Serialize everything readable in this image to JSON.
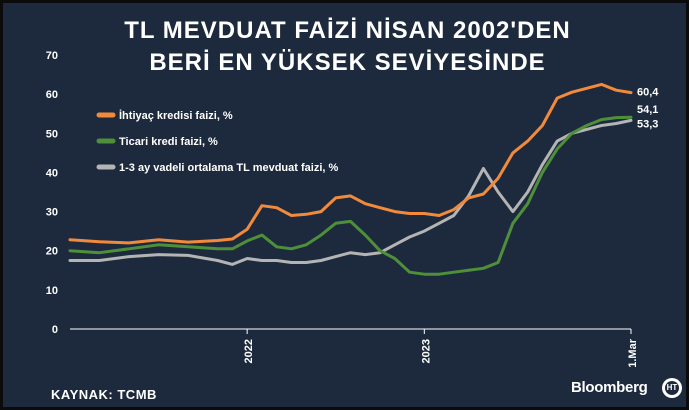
{
  "title_line1": "TL MEVDUAT FAİZİ NİSAN 2002'DEN",
  "title_line2": "BERİ EN YÜKSEK SEVİYESİNDE",
  "source": "KAYNAK: TCMB",
  "brand": "Bloomberg",
  "logo_text": "HT",
  "colors": {
    "background": "#1d2a3d",
    "orange": "#f28a3c",
    "green": "#4e8f3a",
    "gray": "#b4b4b4"
  },
  "chart_data": {
    "type": "line",
    "ylim": [
      0,
      70
    ],
    "yticks": [
      0,
      10,
      20,
      30,
      40,
      50,
      60,
      70
    ],
    "xlim": [
      "2021-01",
      "2024-03"
    ],
    "xticks": [
      {
        "value": "2022-01",
        "label": "2022"
      },
      {
        "value": "2023-01",
        "label": "2023"
      },
      {
        "value": "2024-03",
        "label": "1.Mar"
      }
    ],
    "grid": false,
    "legend_placement": "top-left",
    "series": [
      {
        "name": "İhtiyaç kredisi faizi, %",
        "color": "#f28a3c",
        "end_label": "60,4",
        "points": [
          [
            "2021-01",
            22.8
          ],
          [
            "2021-03",
            22.3
          ],
          [
            "2021-05",
            22.0
          ],
          [
            "2021-07",
            22.8
          ],
          [
            "2021-09",
            22.2
          ],
          [
            "2021-11",
            22.6
          ],
          [
            "2021-12",
            23.0
          ],
          [
            "2022-01",
            25.5
          ],
          [
            "2022-02",
            31.5
          ],
          [
            "2022-03",
            31.0
          ],
          [
            "2022-04",
            29.0
          ],
          [
            "2022-05",
            29.3
          ],
          [
            "2022-06",
            30.0
          ],
          [
            "2022-07",
            33.5
          ],
          [
            "2022-08",
            34.0
          ],
          [
            "2022-09",
            32.0
          ],
          [
            "2022-10",
            31.0
          ],
          [
            "2022-11",
            30.0
          ],
          [
            "2022-12",
            29.5
          ],
          [
            "2023-01",
            29.5
          ],
          [
            "2023-02",
            29.0
          ],
          [
            "2023-03",
            30.5
          ],
          [
            "2023-04",
            33.5
          ],
          [
            "2023-05",
            34.5
          ],
          [
            "2023-06",
            38.5
          ],
          [
            "2023-07",
            45.0
          ],
          [
            "2023-08",
            48.0
          ],
          [
            "2023-09",
            52.0
          ],
          [
            "2023-10",
            59.0
          ],
          [
            "2023-11",
            60.5
          ],
          [
            "2023-12",
            61.5
          ],
          [
            "2024-01",
            62.5
          ],
          [
            "2024-02",
            61.0
          ],
          [
            "2024-03",
            60.4
          ]
        ]
      },
      {
        "name": "Ticari kredi faizi, %",
        "color": "#4e8f3a",
        "end_label": "54,1",
        "points": [
          [
            "2021-01",
            20.0
          ],
          [
            "2021-03",
            19.5
          ],
          [
            "2021-05",
            20.5
          ],
          [
            "2021-07",
            21.5
          ],
          [
            "2021-09",
            21.0
          ],
          [
            "2021-11",
            20.5
          ],
          [
            "2021-12",
            20.5
          ],
          [
            "2022-01",
            22.5
          ],
          [
            "2022-02",
            24.0
          ],
          [
            "2022-03",
            21.0
          ],
          [
            "2022-04",
            20.5
          ],
          [
            "2022-05",
            21.5
          ],
          [
            "2022-06",
            24.0
          ],
          [
            "2022-07",
            27.0
          ],
          [
            "2022-08",
            27.5
          ],
          [
            "2022-09",
            24.0
          ],
          [
            "2022-10",
            20.0
          ],
          [
            "2022-11",
            18.0
          ],
          [
            "2022-12",
            14.5
          ],
          [
            "2023-01",
            14.0
          ],
          [
            "2023-02",
            14.0
          ],
          [
            "2023-03",
            14.5
          ],
          [
            "2023-04",
            15.0
          ],
          [
            "2023-05",
            15.5
          ],
          [
            "2023-06",
            17.0
          ],
          [
            "2023-07",
            27.0
          ],
          [
            "2023-08",
            32.0
          ],
          [
            "2023-09",
            40.0
          ],
          [
            "2023-10",
            46.0
          ],
          [
            "2023-11",
            50.0
          ],
          [
            "2023-12",
            52.0
          ],
          [
            "2024-01",
            53.5
          ],
          [
            "2024-02",
            54.0
          ],
          [
            "2024-03",
            54.1
          ]
        ]
      },
      {
        "name": "1-3 ay vadeli ortalama TL mevduat faizi, %",
        "color": "#b4b4b4",
        "end_label": "53,3",
        "points": [
          [
            "2021-01",
            17.5
          ],
          [
            "2021-03",
            17.5
          ],
          [
            "2021-05",
            18.5
          ],
          [
            "2021-07",
            19.0
          ],
          [
            "2021-09",
            18.8
          ],
          [
            "2021-11",
            17.5
          ],
          [
            "2021-12",
            16.5
          ],
          [
            "2022-01",
            18.0
          ],
          [
            "2022-02",
            17.5
          ],
          [
            "2022-03",
            17.5
          ],
          [
            "2022-04",
            17.0
          ],
          [
            "2022-05",
            17.0
          ],
          [
            "2022-06",
            17.5
          ],
          [
            "2022-07",
            18.5
          ],
          [
            "2022-08",
            19.5
          ],
          [
            "2022-09",
            19.0
          ],
          [
            "2022-10",
            19.5
          ],
          [
            "2022-11",
            21.5
          ],
          [
            "2022-12",
            23.5
          ],
          [
            "2023-01",
            25.0
          ],
          [
            "2023-02",
            27.0
          ],
          [
            "2023-03",
            29.0
          ],
          [
            "2023-04",
            34.0
          ],
          [
            "2023-05",
            41.0
          ],
          [
            "2023-06",
            35.0
          ],
          [
            "2023-07",
            30.0
          ],
          [
            "2023-08",
            35.0
          ],
          [
            "2023-09",
            42.0
          ],
          [
            "2023-10",
            48.0
          ],
          [
            "2023-11",
            50.0
          ],
          [
            "2023-12",
            51.0
          ],
          [
            "2024-01",
            52.0
          ],
          [
            "2024-02",
            52.5
          ],
          [
            "2024-03",
            53.3
          ]
        ]
      }
    ]
  }
}
